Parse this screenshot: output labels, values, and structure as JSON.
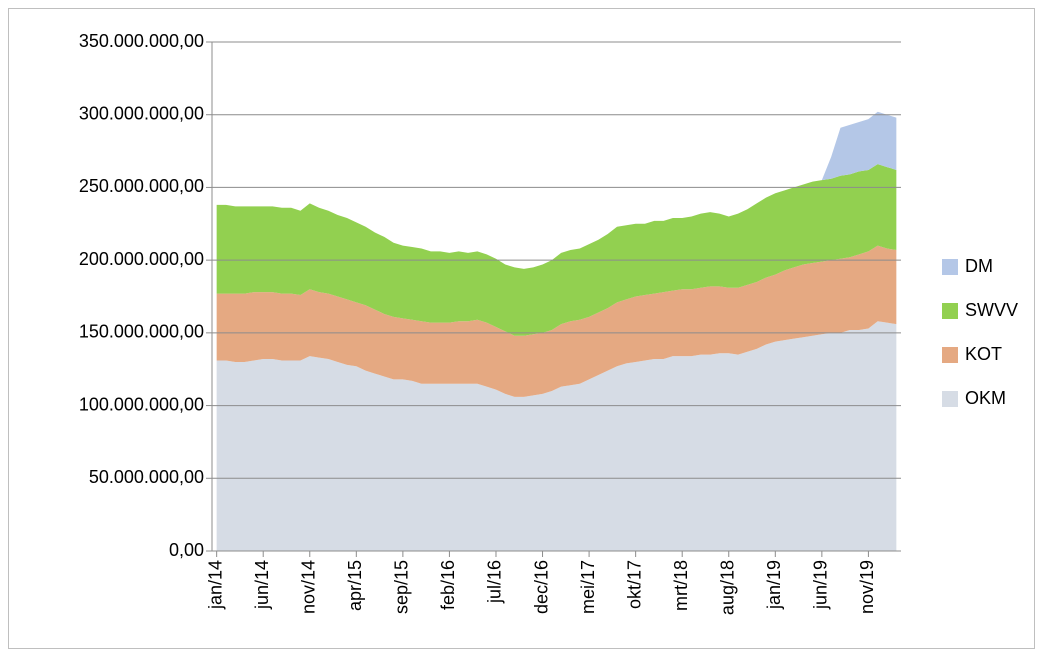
{
  "chart_data": {
    "type": "stacked-area",
    "categories": [
      "jan/14",
      null,
      null,
      null,
      null,
      "jun/14",
      null,
      null,
      null,
      null,
      "nov/14",
      null,
      null,
      null,
      null,
      "apr/15",
      null,
      null,
      null,
      null,
      "sep/15",
      null,
      null,
      null,
      null,
      "feb/16",
      null,
      null,
      null,
      null,
      "jul/16",
      null,
      null,
      null,
      null,
      "dec/16",
      null,
      null,
      null,
      null,
      "mei/17",
      null,
      null,
      null,
      null,
      "okt/17",
      null,
      null,
      null,
      null,
      "mrt/18",
      null,
      null,
      null,
      null,
      "aug/18",
      null,
      null,
      null,
      null,
      "jan/19",
      null,
      null,
      null,
      null,
      "jun/19",
      null,
      null,
      null,
      null,
      "nov/19",
      null,
      null,
      null
    ],
    "series": [
      {
        "name": "OKM",
        "color": "#d6dce5",
        "values": [
          131000000,
          131000000,
          130000000,
          130000000,
          131000000,
          132000000,
          132000000,
          131000000,
          131000000,
          131000000,
          134000000,
          133000000,
          132000000,
          130000000,
          128000000,
          127000000,
          124000000,
          122000000,
          120000000,
          118000000,
          118000000,
          117000000,
          115000000,
          115000000,
          115000000,
          115000000,
          115000000,
          115000000,
          115000000,
          113000000,
          111000000,
          108000000,
          106000000,
          106000000,
          107000000,
          108000000,
          110000000,
          113000000,
          114000000,
          115000000,
          118000000,
          121000000,
          124000000,
          127000000,
          129000000,
          130000000,
          131000000,
          132000000,
          132000000,
          134000000,
          134000000,
          134000000,
          135000000,
          135000000,
          136000000,
          136000000,
          135000000,
          137000000,
          139000000,
          142000000,
          144000000,
          145000000,
          146000000,
          147000000,
          148000000,
          149000000,
          150000000,
          150000000,
          152000000,
          152000000,
          153000000,
          158000000,
          157000000,
          156000000
        ]
      },
      {
        "name": "KOT",
        "color": "#e5a982",
        "values": [
          46000000,
          46000000,
          47000000,
          47000000,
          47000000,
          46000000,
          46000000,
          46000000,
          46000000,
          45000000,
          46000000,
          45000000,
          45000000,
          45000000,
          45000000,
          44000000,
          45000000,
          44000000,
          43000000,
          43000000,
          42000000,
          42000000,
          43000000,
          42000000,
          42000000,
          42000000,
          43000000,
          43000000,
          44000000,
          44000000,
          43000000,
          43000000,
          42000000,
          42000000,
          42000000,
          42000000,
          42000000,
          43000000,
          44000000,
          44000000,
          43000000,
          43000000,
          43000000,
          44000000,
          44000000,
          45000000,
          45000000,
          45000000,
          46000000,
          45000000,
          46000000,
          46000000,
          46000000,
          47000000,
          46000000,
          45000000,
          46000000,
          46000000,
          46000000,
          46000000,
          46000000,
          48000000,
          49000000,
          50000000,
          50000000,
          50000000,
          50000000,
          51000000,
          50000000,
          52000000,
          53000000,
          52000000,
          51000000,
          51000000
        ]
      },
      {
        "name": "SWVV",
        "color": "#92d050",
        "values": [
          61000000,
          61000000,
          60000000,
          60000000,
          59000000,
          59000000,
          59000000,
          59000000,
          59000000,
          58000000,
          59000000,
          58000000,
          57000000,
          56000000,
          56000000,
          55000000,
          54000000,
          53000000,
          53000000,
          51000000,
          50000000,
          50000000,
          50000000,
          49000000,
          49000000,
          48000000,
          48000000,
          47000000,
          47000000,
          47000000,
          47000000,
          46000000,
          47000000,
          46000000,
          46000000,
          47000000,
          48000000,
          49000000,
          49000000,
          49000000,
          50000000,
          50000000,
          51000000,
          52000000,
          51000000,
          50000000,
          49000000,
          50000000,
          49000000,
          50000000,
          49000000,
          50000000,
          51000000,
          51000000,
          50000000,
          49000000,
          51000000,
          52000000,
          54000000,
          55000000,
          56000000,
          55000000,
          55000000,
          55000000,
          56000000,
          56000000,
          56000000,
          57000000,
          57000000,
          57000000,
          56000000,
          56000000,
          56000000,
          55000000
        ]
      },
      {
        "name": "DM",
        "color": "#b4c7e7",
        "values": [
          0,
          0,
          0,
          0,
          0,
          0,
          0,
          0,
          0,
          0,
          0,
          0,
          0,
          0,
          0,
          0,
          0,
          0,
          0,
          0,
          0,
          0,
          0,
          0,
          0,
          0,
          0,
          0,
          0,
          0,
          0,
          0,
          0,
          0,
          0,
          0,
          0,
          0,
          0,
          0,
          0,
          0,
          0,
          0,
          0,
          0,
          0,
          0,
          0,
          0,
          0,
          0,
          0,
          0,
          0,
          0,
          0,
          0,
          0,
          0,
          0,
          0,
          0,
          0,
          0,
          0,
          15000000,
          33000000,
          34000000,
          34000000,
          35000000,
          36000000,
          36000000,
          36000000
        ]
      }
    ],
    "ylim": [
      0,
      350000000
    ],
    "yticks": [
      {
        "value": 0,
        "label": "0,00"
      },
      {
        "value": 50000000,
        "label": "50.000.000,00"
      },
      {
        "value": 100000000,
        "label": "100.000.000,00"
      },
      {
        "value": 150000000,
        "label": "150.000.000,00"
      },
      {
        "value": 200000000,
        "label": "200.000.000,00"
      },
      {
        "value": 250000000,
        "label": "250.000.000,00"
      },
      {
        "value": 300000000,
        "label": "300.000.000,00"
      },
      {
        "value": 350000000,
        "label": "350.000.000,00"
      }
    ],
    "grid": true,
    "legend": "right"
  }
}
